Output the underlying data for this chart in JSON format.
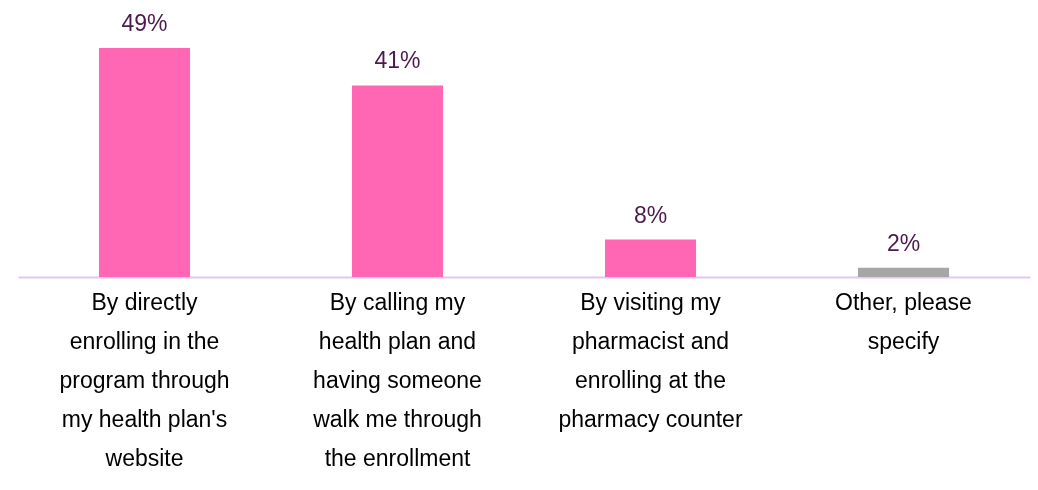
{
  "chart_data": {
    "type": "bar",
    "categories": [
      "By directly enrolling in the program through my health plan's website",
      "By calling my health plan and having someone walk me through the enrollment",
      "By visiting my pharmacist and enrolling at the pharmacy counter",
      "Other, please specify"
    ],
    "values": [
      49,
      41,
      8,
      2
    ],
    "colors": [
      "#ff66b3",
      "#ff66b3",
      "#ff66b3",
      "#a6a6a6"
    ],
    "value_labels": [
      "49%",
      "41%",
      "8%",
      "2%"
    ]
  }
}
